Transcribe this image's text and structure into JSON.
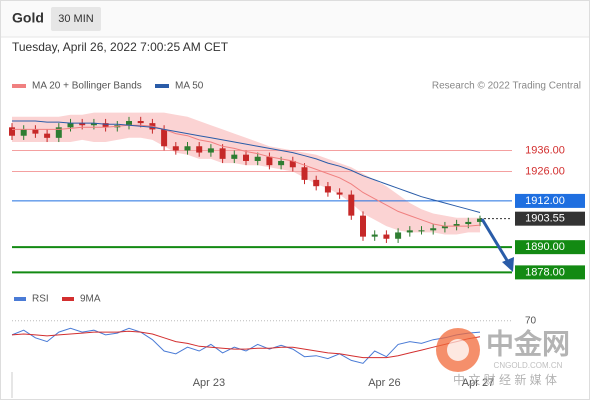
{
  "header": {
    "title": "Gold",
    "interval": "30 MIN",
    "timestamp": "Tuesday, April 26, 2022 7:00:25 AM CET"
  },
  "chart_data": [
    {
      "type": "candlestick",
      "source": "Research © 2022 Trading Central",
      "up_color": "#2e7d32",
      "down_color": "#c62828",
      "categories": [
        null,
        null,
        null,
        null,
        null,
        null,
        null,
        null,
        null,
        null,
        null,
        null,
        null,
        null,
        null,
        null,
        null,
        "Apr 23",
        null,
        null,
        null,
        null,
        null,
        null,
        null,
        null,
        null,
        null,
        null,
        null,
        null,
        null,
        "Apr 26",
        null,
        null,
        null,
        null,
        null,
        null,
        null,
        "Apr 27"
      ],
      "open": [
        1947,
        1943,
        1946,
        1944,
        1942,
        1947,
        1949,
        1948,
        1949,
        1947,
        1948,
        1950,
        1949,
        1946,
        1938,
        1936,
        1938,
        1935,
        1937,
        1932,
        1934,
        1931,
        1933,
        1929,
        1931,
        1928,
        1922,
        1919,
        1916,
        1915,
        1905,
        1895,
        1896,
        1894,
        1897,
        1898,
        1898,
        1899,
        1900,
        1901,
        1902
      ],
      "high": [
        1949,
        1948,
        1948,
        1946,
        1949,
        1951,
        1951,
        1951,
        1951,
        1950,
        1952,
        1952,
        1951,
        1948,
        1940,
        1940,
        1940,
        1939,
        1939,
        1936,
        1936,
        1935,
        1935,
        1933,
        1933,
        1930,
        1924,
        1921,
        1918,
        1917,
        1907,
        1898,
        1898,
        1899,
        1900,
        1900,
        1901,
        1902,
        1903,
        1904,
        1905
      ],
      "low": [
        1941,
        1941,
        1942,
        1940,
        1940,
        1945,
        1946,
        1946,
        1945,
        1945,
        1946,
        1947,
        1944,
        1936,
        1934,
        1934,
        1933,
        1933,
        1930,
        1930,
        1929,
        1929,
        1927,
        1927,
        1926,
        1920,
        1917,
        1914,
        1913,
        1903,
        1893,
        1893,
        1892,
        1892,
        1895,
        1896,
        1896,
        1897,
        1898,
        1899,
        1900
      ],
      "close": [
        1943,
        1946,
        1944,
        1942,
        1947,
        1949,
        1948,
        1949,
        1947,
        1948,
        1950,
        1949,
        1946,
        1938,
        1936,
        1938,
        1935,
        1937,
        1932,
        1934,
        1931,
        1933,
        1929,
        1931,
        1928,
        1922,
        1919,
        1916,
        1915,
        1905,
        1895,
        1896,
        1894,
        1897,
        1898,
        1898,
        1899,
        1900,
        1901,
        1902,
        1903.55
      ],
      "series": [
        {
          "name": "MA 20 + Bollinger Bands",
          "color": "#f08080",
          "band_color": "#fbd3d3",
          "values": [
            1946,
            1946,
            1946,
            1946,
            1946,
            1946.5,
            1947,
            1947,
            1947,
            1947.5,
            1948,
            1948,
            1947.5,
            1946,
            1944,
            1943,
            1941,
            1940,
            1938,
            1937,
            1935.5,
            1934.5,
            1933,
            1932,
            1931,
            1929,
            1927,
            1925,
            1923,
            1920,
            1916,
            1913,
            1910,
            1907,
            1905,
            1903,
            1901,
            1900,
            1900,
            1900,
            1900.5
          ],
          "upper": [
            1952,
            1952,
            1952,
            1952,
            1952,
            1953,
            1953,
            1954,
            1954,
            1954,
            1954,
            1954,
            1954,
            1954,
            1953,
            1952,
            1950,
            1948,
            1946,
            1944,
            1942,
            1940,
            1938,
            1937,
            1936,
            1935,
            1934,
            1932,
            1930,
            1928,
            1925,
            1922,
            1919,
            1915,
            1911,
            1908,
            1906,
            1905,
            1904,
            1904,
            1904
          ],
          "lower": [
            1940,
            1940,
            1940,
            1940,
            1940,
            1940,
            1941,
            1940,
            1940,
            1941,
            1942,
            1942,
            1941,
            1938,
            1935,
            1934,
            1932,
            1932,
            1930,
            1930,
            1929,
            1929,
            1928,
            1927,
            1926,
            1923,
            1920,
            1918,
            1915,
            1911,
            1906,
            1903,
            1900,
            1898,
            1897,
            1897,
            1897,
            1896,
            1896,
            1897,
            1897
          ]
        },
        {
          "name": "MA 50",
          "color": "#2a5ca8",
          "values": [
            1950,
            1950,
            1950,
            1949.5,
            1949.5,
            1949,
            1949,
            1949,
            1948.5,
            1948.5,
            1948,
            1947.5,
            1947,
            1946,
            1945,
            1944,
            1943,
            1942,
            1941,
            1940,
            1939,
            1938,
            1937,
            1936,
            1935,
            1933.5,
            1932,
            1930,
            1928.5,
            1926.5,
            1924,
            1922,
            1920,
            1918,
            1916,
            1914,
            1912.5,
            1911,
            1909.5,
            1908,
            1906.5
          ]
        }
      ],
      "levels": [
        {
          "value": 1936,
          "label": "1936.00",
          "color": "#d32f2f",
          "style": "plain"
        },
        {
          "value": 1926,
          "label": "1926.00",
          "color": "#d32f2f",
          "style": "plain"
        },
        {
          "value": 1912,
          "label": "1912.00",
          "color": "#1f6fe0",
          "style": "box"
        },
        {
          "value": 1903.55,
          "label": "1903.55",
          "color": "#333333",
          "style": "current"
        },
        {
          "value": 1890,
          "label": "1890.00",
          "color": "#138a13",
          "style": "box"
        },
        {
          "value": 1878,
          "label": "1878.00",
          "color": "#138a13",
          "style": "box"
        }
      ],
      "ylim": [
        1872,
        1960
      ]
    },
    {
      "type": "line",
      "ylim": [
        20,
        92
      ],
      "yticks": [
        70
      ],
      "series": [
        {
          "name": "RSI",
          "color": "#4a7bd6",
          "values": [
            55,
            60,
            52,
            48,
            58,
            62,
            58,
            60,
            55,
            57,
            62,
            58,
            50,
            38,
            35,
            42,
            38,
            45,
            36,
            42,
            38,
            45,
            40,
            44,
            40,
            32,
            33,
            30,
            35,
            28,
            25,
            38,
            32,
            45,
            48,
            46,
            50,
            52,
            55,
            57,
            58
          ]
        },
        {
          "name": "9MA",
          "color": "#d32f2f",
          "values": [
            55,
            56,
            55,
            54,
            55,
            56,
            57,
            58,
            58,
            58,
            59,
            58,
            56,
            52,
            48,
            46,
            43,
            42,
            41,
            40,
            40,
            41,
            41,
            42,
            42,
            40,
            38,
            36,
            35,
            33,
            31,
            31,
            31,
            33,
            36,
            39,
            42,
            45,
            48,
            51,
            53
          ]
        }
      ]
    }
  ],
  "watermark": {
    "logo": "中金网",
    "site": "CNGOLD.COM.CN",
    "slogan": "中 文 财 经 新 媒 体"
  }
}
